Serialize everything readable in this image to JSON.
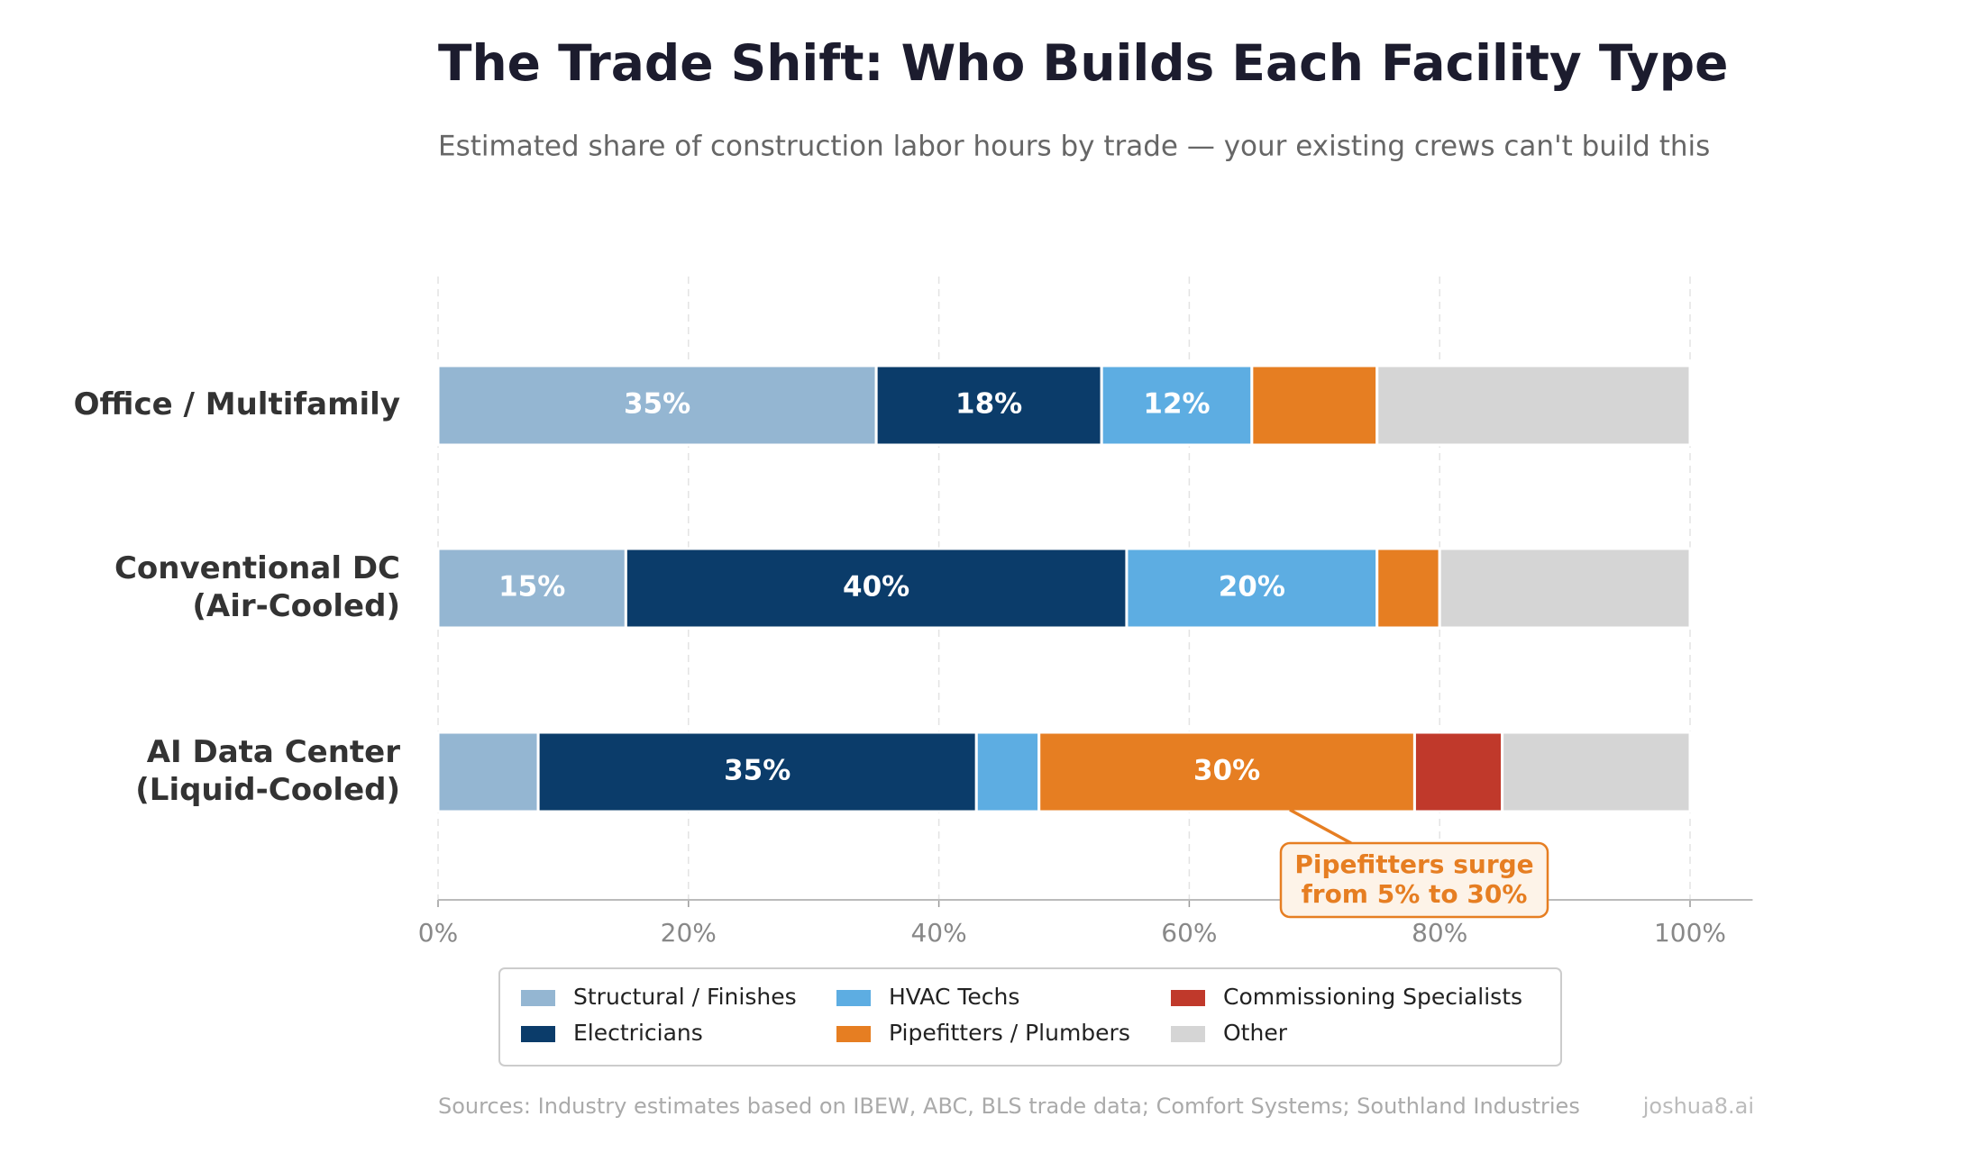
{
  "chart_data": {
    "type": "stacked-barh",
    "title": "The Trade Shift: Who Builds Each Facility Type",
    "subtitle": "Estimated share of construction labor hours by trade — your existing crews can't build this",
    "categories": [
      "Office / Multifamily",
      "Conventional DC\n(Air-Cooled)",
      "AI Data Center\n(Liquid-Cooled)"
    ],
    "series": [
      {
        "name": "Structural / Finishes",
        "color": "#94b6d2",
        "values": [
          35,
          15,
          8
        ],
        "value_labels": [
          "35%",
          "15%",
          null
        ]
      },
      {
        "name": "Electricians",
        "color": "#0b3c6a",
        "values": [
          18,
          40,
          35
        ],
        "value_labels": [
          "18%",
          "40%",
          "35%"
        ]
      },
      {
        "name": "HVAC Techs",
        "color": "#5dade2",
        "values": [
          12,
          20,
          5
        ],
        "value_labels": [
          "12%",
          "20%",
          null
        ]
      },
      {
        "name": "Pipefitters / Plumbers",
        "color": "#e67e22",
        "values": [
          10,
          5,
          30
        ],
        "value_labels": [
          null,
          null,
          "30%"
        ]
      },
      {
        "name": "Commissioning Specialists",
        "color": "#c0392b",
        "values": [
          0,
          0,
          7
        ],
        "value_labels": [
          null,
          null,
          null
        ]
      },
      {
        "name": "Other",
        "color": "#d5d5d5",
        "values": [
          25,
          20,
          15
        ],
        "value_labels": [
          null,
          null,
          null
        ]
      }
    ],
    "xlim": [
      0,
      105
    ],
    "xticks": [
      {
        "value": 0,
        "label": "0%"
      },
      {
        "value": 20,
        "label": "20%"
      },
      {
        "value": 40,
        "label": "40%"
      },
      {
        "value": 60,
        "label": "60%"
      },
      {
        "value": 80,
        "label": "80%"
      },
      {
        "value": 100,
        "label": "100%"
      }
    ],
    "grid": true,
    "legend": "bottom",
    "annotation": {
      "lines": [
        "Pipefitters surge",
        "from 5% to 30%"
      ],
      "color": "#e67e22"
    },
    "source": "Sources: Industry estimates based on IBEW, ABC, BLS trade data; Comfort Systems; Southland Industries",
    "watermark": "joshua8.ai"
  }
}
